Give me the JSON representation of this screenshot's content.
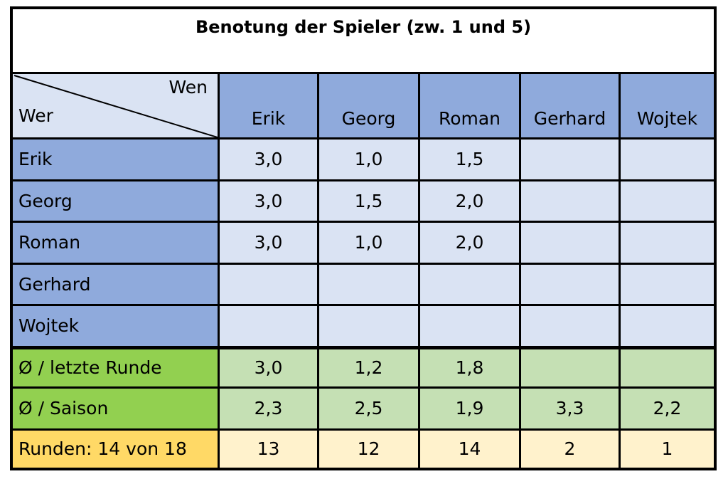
{
  "title": "Benotung der Spieler (zw. 1 und 5)",
  "corner": {
    "top_label": "Wen",
    "bottom_label": "Wer"
  },
  "columns": [
    "Erik",
    "Georg",
    "Roman",
    "Gerhard",
    "Wojtek"
  ],
  "rows": [
    {
      "name": "Erik",
      "values": [
        "3,0",
        "1,0",
        "1,5",
        "",
        ""
      ]
    },
    {
      "name": "Georg",
      "values": [
        "3,0",
        "1,5",
        "2,0",
        "",
        ""
      ]
    },
    {
      "name": "Roman",
      "values": [
        "3,0",
        "1,0",
        "2,0",
        "",
        ""
      ]
    },
    {
      "name": "Gerhard",
      "values": [
        "",
        "",
        "",
        "",
        ""
      ]
    },
    {
      "name": "Wojtek",
      "values": [
        "",
        "",
        "",
        "",
        ""
      ]
    }
  ],
  "summary": [
    {
      "name": "Ø / letzte Runde",
      "values": [
        "3,0",
        "1,2",
        "1,8",
        "",
        ""
      ]
    },
    {
      "name": "Ø / Saison",
      "values": [
        "2,3",
        "2,5",
        "1,9",
        "3,3",
        "2,2"
      ]
    }
  ],
  "rounds": {
    "label": "Runden: 14 von 18",
    "values": [
      "13",
      "12",
      "14",
      "2",
      "1"
    ]
  },
  "colors": {
    "header_blue": "#8faadc",
    "grid_light_blue": "#dae3f3",
    "avg_label_green": "#92d050",
    "avg_green": "#c5e0b4",
    "rounds_label_yellow": "#ffd966",
    "rounds_yellow": "#fff2cc"
  }
}
